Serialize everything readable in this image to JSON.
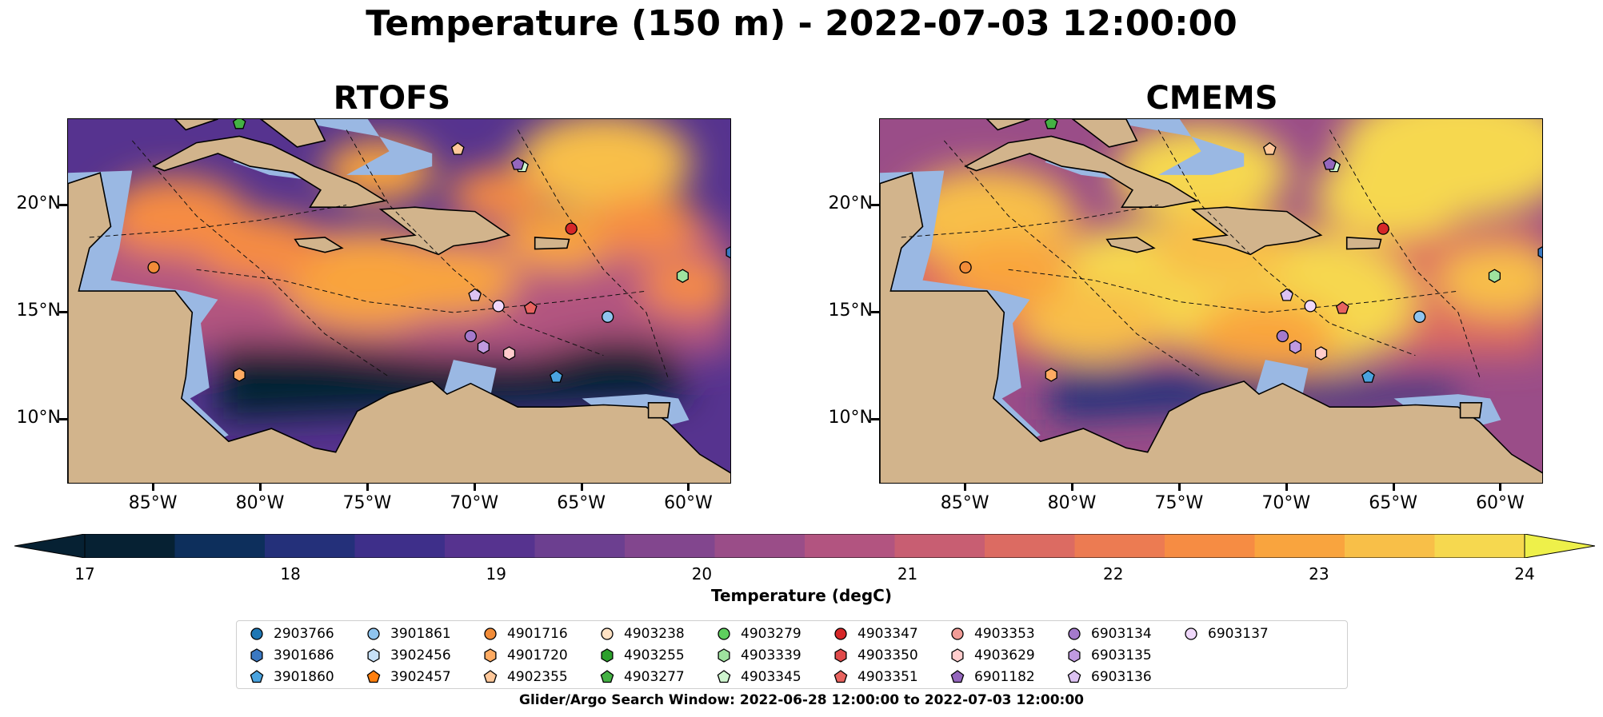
{
  "figure": {
    "title": "Temperature (150 m) - 2022-07-03 12:00:00",
    "colorbar_label": "Temperature (degC)",
    "search_window": "Glider/Argo Search Window: 2022-06-28 12:00:00 to 2022-07-03 12:00:00"
  },
  "panels": [
    {
      "title": "RTOFS",
      "warmth": 0.0
    },
    {
      "title": "CMEMS",
      "warmth": 1.0
    }
  ],
  "axes": {
    "lat_ticks": [
      "20°N",
      "15°N",
      "10°N"
    ],
    "lon_ticks": [
      "85°W",
      "80°W",
      "75°W",
      "70°W",
      "65°W",
      "60°W"
    ],
    "extent": {
      "lon_min": -89,
      "lon_max": -58,
      "lat_min": 7,
      "lat_max": 24
    }
  },
  "colorbar": {
    "ticks": [
      "17",
      "18",
      "19",
      "20",
      "21",
      "22",
      "23",
      "24"
    ],
    "vmin": 17,
    "vmax": 24,
    "colors": [
      "#062133",
      "#0d2f5c",
      "#24307a",
      "#3e2f8a",
      "#56338f",
      "#6c3f90",
      "#82468e",
      "#9a4d88",
      "#b25480",
      "#c85e72",
      "#dc6b62",
      "#ec7b52",
      "#f68c43",
      "#f9a43e",
      "#f8bf48",
      "#f6d84f"
    ],
    "extend_low": "#062133",
    "extend_high": "#eef04a"
  },
  "map_colors": {
    "land": "#d2b48c",
    "shallow": "#9ab8e3",
    "deep": "#062133"
  },
  "platforms": [
    {
      "id": "2903766",
      "marker": "circle",
      "color": "#1f77b4",
      "lon": null,
      "lat": null
    },
    {
      "id": "3901686",
      "marker": "hexagon",
      "color": "#3a78c2",
      "lon": -58.0,
      "lat": 17.8
    },
    {
      "id": "3901860",
      "marker": "pentagon",
      "color": "#4aa3df",
      "lon": -66.2,
      "lat": 12.0
    },
    {
      "id": "3901861",
      "marker": "circle",
      "color": "#8fc4ee",
      "lon": -63.8,
      "lat": 14.8
    },
    {
      "id": "3902456",
      "marker": "hexagon",
      "color": "#c6e0f7",
      "lon": null,
      "lat": null
    },
    {
      "id": "3902457",
      "marker": "pentagon",
      "color": "#ff7f0e",
      "lon": null,
      "lat": null
    },
    {
      "id": "4901716",
      "marker": "circle",
      "color": "#f28c38",
      "lon": -85.0,
      "lat": 17.1
    },
    {
      "id": "4901720",
      "marker": "hexagon",
      "color": "#ffab62",
      "lon": -81.0,
      "lat": 12.1
    },
    {
      "id": "4902355",
      "marker": "pentagon",
      "color": "#ffc89a",
      "lon": -70.8,
      "lat": 22.6
    },
    {
      "id": "4903238",
      "marker": "circle",
      "color": "#ffe2c4",
      "lon": null,
      "lat": null
    },
    {
      "id": "4903255",
      "marker": "hexagon",
      "color": "#2ca02c",
      "lon": null,
      "lat": null
    },
    {
      "id": "4903277",
      "marker": "pentagon",
      "color": "#44b144",
      "lon": -81.0,
      "lat": 23.8
    },
    {
      "id": "4903279",
      "marker": "circle",
      "color": "#5ecf5e",
      "lon": null,
      "lat": null
    },
    {
      "id": "4903339",
      "marker": "hexagon",
      "color": "#9fe39f",
      "lon": -60.3,
      "lat": 16.7
    },
    {
      "id": "4903345",
      "marker": "pentagon",
      "color": "#cff5cf",
      "lon": -67.8,
      "lat": 21.8
    },
    {
      "id": "4903347",
      "marker": "circle",
      "color": "#d62728",
      "lon": -65.5,
      "lat": 18.9
    },
    {
      "id": "4903350",
      "marker": "hexagon",
      "color": "#e04a4a",
      "lon": null,
      "lat": null
    },
    {
      "id": "4903351",
      "marker": "pentagon",
      "color": "#e8635f",
      "lon": -67.4,
      "lat": 15.2
    },
    {
      "id": "4903353",
      "marker": "circle",
      "color": "#f19c97",
      "lon": null,
      "lat": null
    },
    {
      "id": "4903629",
      "marker": "hexagon",
      "color": "#ffcccc",
      "lon": -68.4,
      "lat": 13.1
    },
    {
      "id": "6901182",
      "marker": "pentagon",
      "color": "#9467bd",
      "lon": -68.0,
      "lat": 21.9
    },
    {
      "id": "6903134",
      "marker": "circle",
      "color": "#a47acb",
      "lon": -70.2,
      "lat": 13.9
    },
    {
      "id": "6903135",
      "marker": "hexagon",
      "color": "#c09ae0",
      "lon": -69.6,
      "lat": 13.4
    },
    {
      "id": "6903136",
      "marker": "pentagon",
      "color": "#dcc2f2",
      "lon": -70.0,
      "lat": 15.8
    },
    {
      "id": "6903137",
      "marker": "circle",
      "color": "#f0d8fb",
      "lon": -68.9,
      "lat": 15.3
    }
  ]
}
